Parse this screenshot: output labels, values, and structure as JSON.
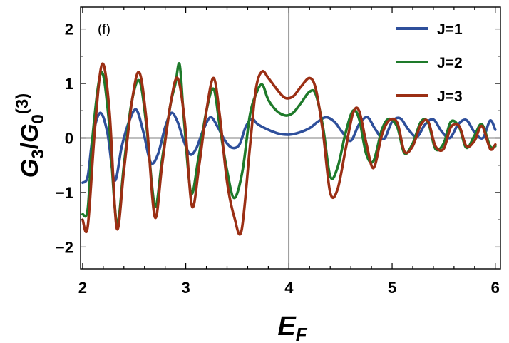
{
  "chart_data": {
    "type": "line",
    "panel_label": "(f)",
    "xlabel": {
      "main": "E",
      "sub": "F"
    },
    "ylabel": {
      "num": "G",
      "num_sub": "3",
      "den": "G",
      "den_sub": "0",
      "den_sup": "(3)"
    },
    "xlim": [
      1.98,
      6.05
    ],
    "ylim": [
      -2.4,
      2.4
    ],
    "xticks": [
      2,
      3,
      4,
      5,
      6
    ],
    "xtick_labels": [
      "2",
      "3",
      "4",
      "5",
      "6"
    ],
    "yticks": [
      -2,
      -1,
      0,
      1,
      2
    ],
    "ytick_labels": [
      "−2",
      "−1",
      "0",
      "1",
      "2"
    ],
    "reference_lines": {
      "x": 4,
      "y": 0
    },
    "legend": {
      "position": "top-right"
    },
    "series": [
      {
        "name": "J=1",
        "color": "#2e4f9b",
        "x": [
          2.0,
          2.05,
          2.1,
          2.17,
          2.24,
          2.31,
          2.38,
          2.45,
          2.52,
          2.59,
          2.66,
          2.73,
          2.8,
          2.86,
          2.92,
          2.98,
          3.04,
          3.1,
          3.17,
          3.24,
          3.31,
          3.38,
          3.45,
          3.52,
          3.58,
          3.64,
          3.7,
          3.8,
          3.9,
          4.0,
          4.1,
          4.2,
          4.28,
          4.36,
          4.44,
          4.52,
          4.6,
          4.68,
          4.76,
          4.84,
          4.92,
          5.0,
          5.08,
          5.16,
          5.24,
          5.32,
          5.4,
          5.48,
          5.56,
          5.64,
          5.72,
          5.8,
          5.88,
          5.95,
          6.0
        ],
        "y": [
          -0.82,
          -0.7,
          0.05,
          0.46,
          0.1,
          -0.78,
          -0.15,
          0.3,
          0.52,
          0.1,
          -0.45,
          -0.3,
          0.2,
          0.46,
          0.3,
          -0.05,
          -0.3,
          -0.2,
          0.15,
          0.38,
          0.2,
          -0.05,
          -0.18,
          -0.12,
          0.2,
          0.35,
          0.25,
          0.15,
          0.08,
          0.06,
          0.1,
          0.18,
          0.3,
          0.38,
          0.3,
          0.1,
          -0.05,
          0.25,
          0.38,
          0.15,
          -0.02,
          0.3,
          0.36,
          0.15,
          0.02,
          0.25,
          0.34,
          0.12,
          0.0,
          0.25,
          0.33,
          0.1,
          0.0,
          0.32,
          0.15
        ]
      },
      {
        "name": "J=2",
        "color": "#1e7a2a",
        "x": [
          2.0,
          2.05,
          2.1,
          2.18,
          2.25,
          2.33,
          2.4,
          2.47,
          2.55,
          2.62,
          2.7,
          2.77,
          2.85,
          2.9,
          2.94,
          2.98,
          3.05,
          3.12,
          3.2,
          3.27,
          3.33,
          3.4,
          3.47,
          3.55,
          3.62,
          3.68,
          3.74,
          3.8,
          3.88,
          3.95,
          4.0,
          4.05,
          4.12,
          4.2,
          4.26,
          4.33,
          4.4,
          4.47,
          4.55,
          4.62,
          4.68,
          4.75,
          4.82,
          4.9,
          4.97,
          5.05,
          5.12,
          5.2,
          5.28,
          5.35,
          5.42,
          5.5,
          5.57,
          5.65,
          5.72,
          5.8,
          5.87,
          5.95,
          6.0
        ],
        "y": [
          -1.4,
          -1.3,
          0.1,
          1.2,
          0.4,
          -1.55,
          -0.5,
          0.6,
          1.05,
          0.2,
          -1.25,
          -0.4,
          0.6,
          1.0,
          1.35,
          0.4,
          -1.0,
          -0.4,
          0.5,
          0.9,
          0.2,
          -0.6,
          -1.1,
          -0.6,
          0.4,
          0.8,
          0.98,
          0.7,
          0.5,
          0.42,
          0.42,
          0.48,
          0.65,
          0.85,
          0.8,
          0.2,
          -0.7,
          -0.55,
          0.1,
          0.5,
          0.35,
          -0.3,
          -0.42,
          0.15,
          0.35,
          0.2,
          -0.28,
          -0.1,
          0.3,
          0.28,
          -0.2,
          -0.1,
          0.3,
          0.2,
          -0.18,
          0.05,
          0.25,
          -0.15,
          -0.15
        ]
      },
      {
        "name": "J=3",
        "color": "#9b2f14",
        "x": [
          2.0,
          2.05,
          2.12,
          2.19,
          2.26,
          2.33,
          2.4,
          2.48,
          2.55,
          2.62,
          2.7,
          2.77,
          2.85,
          2.92,
          2.99,
          3.06,
          3.13,
          3.2,
          3.27,
          3.33,
          3.4,
          3.47,
          3.54,
          3.62,
          3.68,
          3.74,
          3.8,
          3.88,
          3.95,
          4.0,
          4.05,
          4.12,
          4.2,
          4.26,
          4.33,
          4.4,
          4.47,
          4.55,
          4.62,
          4.68,
          4.75,
          4.82,
          4.9,
          4.97,
          5.05,
          5.12,
          5.2,
          5.28,
          5.35,
          5.42,
          5.5,
          5.57,
          5.65,
          5.72,
          5.8,
          5.87,
          5.95,
          6.0
        ],
        "y": [
          -1.5,
          -1.62,
          0.2,
          1.36,
          0.5,
          -1.65,
          -0.6,
          0.7,
          1.2,
          0.3,
          -1.45,
          -0.5,
          0.6,
          1.1,
          0.3,
          -1.25,
          -0.5,
          0.5,
          1.1,
          0.4,
          -0.8,
          -1.45,
          -1.7,
          -0.2,
          0.9,
          1.22,
          1.1,
          0.9,
          0.75,
          0.73,
          0.78,
          0.95,
          1.1,
          0.9,
          0.1,
          -1.0,
          -0.95,
          -0.2,
          0.45,
          0.5,
          -0.1,
          -0.55,
          0.05,
          0.32,
          0.28,
          -0.25,
          -0.15,
          0.25,
          0.3,
          -0.15,
          -0.2,
          0.2,
          0.22,
          -0.15,
          -0.05,
          0.22,
          -0.2,
          -0.12
        ]
      }
    ]
  }
}
